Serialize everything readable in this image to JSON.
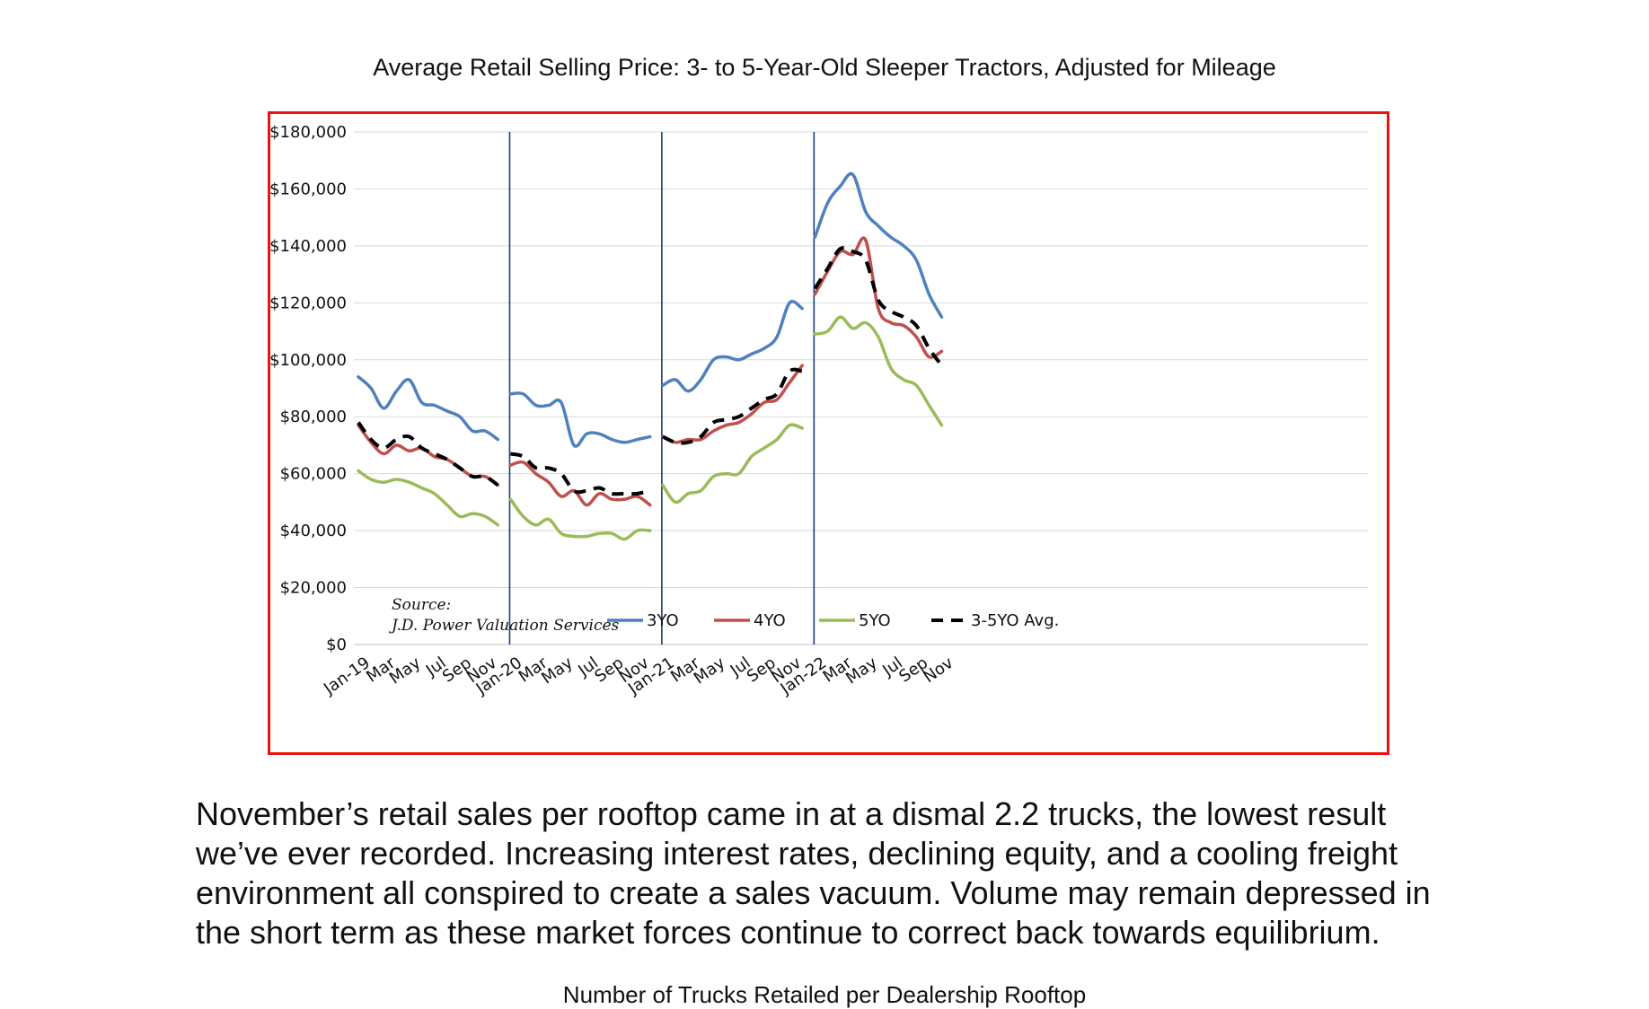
{
  "page": {
    "paragraph": "November’s retail sales per rooftop came in at a dismal 2.2 trucks, the lowest result we’ve ever recorded. Increasing interest rates, declining equity, and a cooling freight environment all conspired to create a sales vacuum. Volume may remain depressed in the short term as these market forces continue to correct back towards equilibrium.",
    "next_chart_title": "Number of Trucks Retailed per Dealership Rooftop"
  },
  "chart_data": {
    "type": "line",
    "title": "Average Retail Selling Price: 3- to 5-Year-Old Sleeper Tractors, Adjusted for Mileage",
    "xlabel": "",
    "ylabel": "",
    "ylim": [
      0,
      180000
    ],
    "y_ticks": [
      "$0",
      "$20,000",
      "$40,000",
      "$60,000",
      "$80,000",
      "$100,000",
      "$120,000",
      "$140,000",
      "$160,000",
      "$180,000"
    ],
    "x_tick_labels": [
      "Jan-19",
      "Mar",
      "May",
      "Jul",
      "Sep",
      "Nov",
      "Jan-20",
      "Mar",
      "May",
      "Jul",
      "Sep",
      "Nov",
      "Jan-21",
      "Mar",
      "May",
      "Jul",
      "Sep",
      "Nov",
      "Jan-22",
      "Mar",
      "May",
      "Jul",
      "Sep",
      "Nov"
    ],
    "segments": [
      "2019",
      "2020",
      "2021",
      "2022"
    ],
    "grid": true,
    "legend_position": "bottom",
    "frame_color": "#ee1111",
    "annotation": {
      "line1": "Source:",
      "line2": "J.D. Power Valuation Services"
    },
    "series": [
      {
        "name": "3YO",
        "color": "#4f81bd",
        "dash": "solid",
        "segments": [
          [
            94000,
            90000,
            83000,
            89000,
            93000,
            85000,
            84000,
            82000,
            80000,
            75000,
            75000,
            72000
          ],
          [
            88000,
            88000,
            84000,
            84000,
            85000,
            70000,
            74000,
            74000,
            72000,
            71000,
            72000,
            73000
          ],
          [
            91000,
            93000,
            89000,
            93000,
            100000,
            101000,
            100000,
            102000,
            104000,
            108000,
            120000,
            118000
          ],
          [
            143000,
            155000,
            161000,
            165000,
            152000,
            147000,
            143000,
            140000,
            135000,
            123000,
            115000
          ]
        ]
      },
      {
        "name": "4YO",
        "color": "#c0504d",
        "dash": "solid",
        "segments": [
          [
            77000,
            71000,
            67000,
            70000,
            68000,
            69000,
            66000,
            65000,
            62000,
            59000,
            59000,
            56000
          ],
          [
            63000,
            64000,
            60000,
            57000,
            52000,
            54000,
            49000,
            53000,
            51000,
            51000,
            52000,
            49000
          ],
          [
            73000,
            71000,
            72000,
            72000,
            75000,
            77000,
            78000,
            81000,
            85000,
            86000,
            92000,
            98000
          ],
          [
            123000,
            131000,
            138000,
            137000,
            142000,
            118000,
            113000,
            112000,
            108000,
            101000,
            103000
          ]
        ]
      },
      {
        "name": "5YO",
        "color": "#9bbb59",
        "dash": "solid",
        "segments": [
          [
            61000,
            58000,
            57000,
            58000,
            57000,
            55000,
            53000,
            49000,
            45000,
            46000,
            45000,
            42000
          ],
          [
            51000,
            45000,
            42000,
            44000,
            39000,
            38000,
            38000,
            39000,
            39000,
            37000,
            40000,
            40000
          ],
          [
            56000,
            50000,
            53000,
            54000,
            59000,
            60000,
            60000,
            66000,
            69000,
            72000,
            77000,
            76000
          ],
          [
            109000,
            110000,
            115000,
            111000,
            113000,
            108000,
            97000,
            93000,
            91000,
            84000,
            77000
          ]
        ]
      },
      {
        "name": "3-5YO Avg.",
        "color": "#000000",
        "dash": "dashed",
        "segments": [
          [
            78000,
            72000,
            69000,
            72000,
            73000,
            69000,
            67000,
            65000,
            62000,
            59000,
            59000,
            56000
          ],
          [
            67000,
            66000,
            62000,
            62000,
            60000,
            54000,
            54000,
            55000,
            53000,
            53000,
            53000,
            54000
          ],
          [
            73000,
            71000,
            71000,
            73000,
            78000,
            79000,
            80000,
            83000,
            86000,
            88000,
            96000,
            96000
          ],
          [
            125000,
            132000,
            139000,
            138000,
            135000,
            121000,
            117000,
            115000,
            112000,
            104000,
            98000
          ]
        ]
      }
    ]
  }
}
